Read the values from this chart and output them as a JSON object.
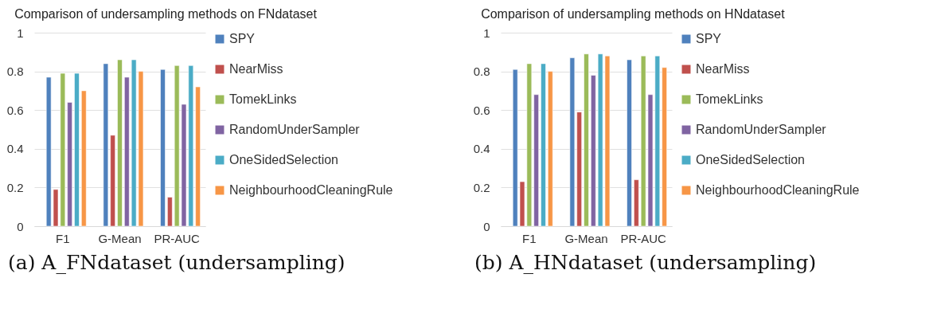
{
  "chart_data": [
    {
      "type": "bar",
      "title": "Comparison of undersampling methods on FNdataset",
      "categories": [
        "F1",
        "G-Mean",
        "PR-AUC"
      ],
      "series": [
        {
          "name": "SPY",
          "color": "#4f81bd",
          "values": [
            0.77,
            0.84,
            0.81
          ]
        },
        {
          "name": "NearMiss",
          "color": "#c0504d",
          "values": [
            0.19,
            0.47,
            0.15
          ]
        },
        {
          "name": "TomekLinks",
          "color": "#9bbb59",
          "values": [
            0.79,
            0.86,
            0.83
          ]
        },
        {
          "name": "RandomUnderSampler",
          "color": "#8064a2",
          "values": [
            0.64,
            0.77,
            0.63
          ]
        },
        {
          "name": "OneSidedSelection",
          "color": "#4bacc6",
          "values": [
            0.79,
            0.86,
            0.83
          ]
        },
        {
          "name": "NeighbourhoodCleaningRule",
          "color": "#f79646",
          "values": [
            0.7,
            0.8,
            0.72
          ]
        }
      ],
      "ylim": [
        0,
        1
      ],
      "yticks": [
        0,
        0.2,
        0.4,
        0.6,
        0.8,
        1
      ],
      "grid": "y",
      "legend": "right",
      "annotations": [
        "(a) A_FNdataset (undersampling)"
      ]
    },
    {
      "type": "bar",
      "title": "Comparison of undersampling methods on HNdataset",
      "categories": [
        "F1",
        "G-Mean",
        "PR-AUC"
      ],
      "series": [
        {
          "name": "SPY",
          "color": "#4f81bd",
          "values": [
            0.81,
            0.87,
            0.86
          ]
        },
        {
          "name": "NearMiss",
          "color": "#c0504d",
          "values": [
            0.23,
            0.59,
            0.24
          ]
        },
        {
          "name": "TomekLinks",
          "color": "#9bbb59",
          "values": [
            0.84,
            0.89,
            0.88
          ]
        },
        {
          "name": "RandomUnderSampler",
          "color": "#8064a2",
          "values": [
            0.68,
            0.78,
            0.68
          ]
        },
        {
          "name": "OneSidedSelection",
          "color": "#4bacc6",
          "values": [
            0.84,
            0.89,
            0.88
          ]
        },
        {
          "name": "NeighbourhoodCleaningRule",
          "color": "#f79646",
          "values": [
            0.8,
            0.88,
            0.82
          ]
        }
      ],
      "ylim": [
        0,
        1
      ],
      "yticks": [
        0,
        0.2,
        0.4,
        0.6,
        0.8,
        1
      ],
      "grid": "y",
      "legend": "right",
      "annotations": [
        "(b) A_HNdataset (undersampling)"
      ]
    }
  ]
}
